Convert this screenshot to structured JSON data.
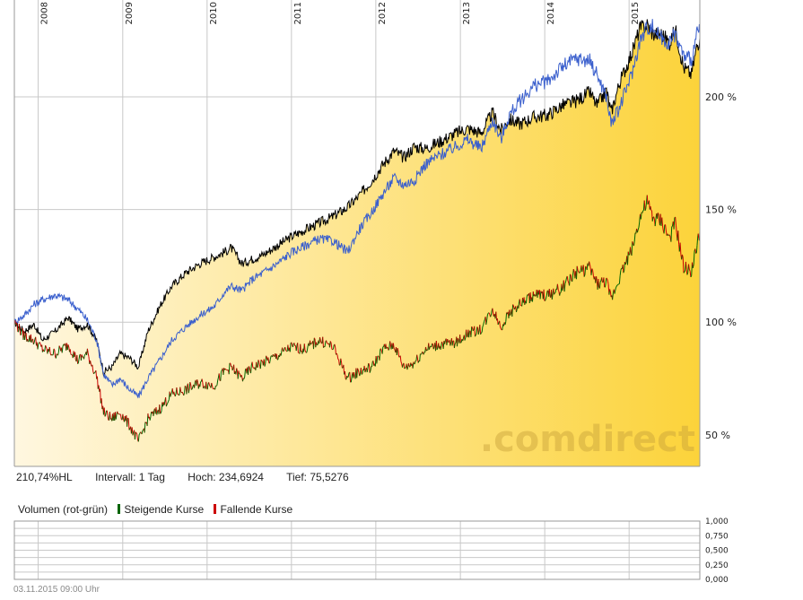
{
  "chart_data": {
    "type": "line",
    "start_date": "2007-09-20",
    "end_date": "2015-11-03",
    "year_labels": [
      "2008",
      "2009",
      "2010",
      "2011",
      "2012",
      "2013",
      "2014",
      "2015"
    ],
    "y_axis": {
      "ticks": [
        50,
        100,
        150,
        200
      ],
      "tick_labels": [
        "50 %",
        "100 %",
        "150 %",
        "200 %"
      ],
      "unit": "%",
      "ylim": [
        36,
        243
      ]
    },
    "grid": true,
    "series": [
      {
        "color": "#000000",
        "area_fill": true,
        "points": [
          [
            "2007-09-20",
            100
          ],
          [
            "2007-11-01",
            96
          ],
          [
            "2007-12-15",
            99
          ],
          [
            "2008-01-20",
            92
          ],
          [
            "2008-03-15",
            96
          ],
          [
            "2008-05-10",
            102
          ],
          [
            "2008-06-20",
            97
          ],
          [
            "2008-08-01",
            99
          ],
          [
            "2008-09-10",
            92
          ],
          [
            "2008-10-10",
            78
          ],
          [
            "2008-11-15",
            80
          ],
          [
            "2008-12-20",
            86
          ],
          [
            "2009-02-01",
            84
          ],
          [
            "2009-03-10",
            80
          ],
          [
            "2009-04-20",
            96
          ],
          [
            "2009-06-15",
            108
          ],
          [
            "2009-08-01",
            116
          ],
          [
            "2009-10-01",
            122
          ],
          [
            "2009-12-01",
            126
          ],
          [
            "2010-02-01",
            129
          ],
          [
            "2010-03-15",
            131
          ],
          [
            "2010-04-15",
            133
          ],
          [
            "2010-06-01",
            126
          ],
          [
            "2010-07-15",
            128
          ],
          [
            "2010-09-01",
            130
          ],
          [
            "2010-11-01",
            134
          ],
          [
            "2011-01-01",
            138
          ],
          [
            "2011-03-01",
            141
          ],
          [
            "2011-05-01",
            144
          ],
          [
            "2011-07-01",
            147
          ],
          [
            "2011-09-01",
            151
          ],
          [
            "2011-10-20",
            156
          ],
          [
            "2011-12-15",
            163
          ],
          [
            "2012-02-01",
            170
          ],
          [
            "2012-03-20",
            176
          ],
          [
            "2012-05-01",
            173
          ],
          [
            "2012-06-15",
            178
          ],
          [
            "2012-08-01",
            177
          ],
          [
            "2012-10-01",
            180
          ],
          [
            "2012-12-15",
            184
          ],
          [
            "2013-02-01",
            186
          ],
          [
            "2013-04-01",
            184
          ],
          [
            "2013-05-20",
            193
          ],
          [
            "2013-06-25",
            185
          ],
          [
            "2013-08-01",
            190
          ],
          [
            "2013-09-15",
            188
          ],
          [
            "2013-11-15",
            191
          ],
          [
            "2014-01-15",
            192
          ],
          [
            "2014-03-15",
            196
          ],
          [
            "2014-05-15",
            198
          ],
          [
            "2014-07-15",
            202
          ],
          [
            "2014-08-15",
            196
          ],
          [
            "2014-09-25",
            203
          ],
          [
            "2014-10-15",
            193
          ],
          [
            "2014-11-20",
            206
          ],
          [
            "2015-01-15",
            220
          ],
          [
            "2015-02-15",
            230
          ],
          [
            "2015-03-20",
            232
          ],
          [
            "2015-04-15",
            228
          ],
          [
            "2015-05-20",
            228
          ],
          [
            "2015-06-25",
            224
          ],
          [
            "2015-07-20",
            230
          ],
          [
            "2015-08-25",
            213
          ],
          [
            "2015-09-28",
            210
          ],
          [
            "2015-10-20",
            222
          ],
          [
            "2015-11-03",
            226
          ]
        ]
      },
      {
        "color": "#3a5fcd",
        "area_fill": false,
        "points": [
          [
            "2007-09-20",
            100
          ],
          [
            "2007-11-01",
            103
          ],
          [
            "2007-12-15",
            108
          ],
          [
            "2008-01-20",
            110
          ],
          [
            "2008-03-15",
            112
          ],
          [
            "2008-05-10",
            110
          ],
          [
            "2008-06-20",
            106
          ],
          [
            "2008-08-01",
            101
          ],
          [
            "2008-09-10",
            92
          ],
          [
            "2008-10-10",
            77
          ],
          [
            "2008-11-15",
            72
          ],
          [
            "2008-12-20",
            75
          ],
          [
            "2009-02-01",
            70
          ],
          [
            "2009-03-10",
            67
          ],
          [
            "2009-04-20",
            75
          ],
          [
            "2009-06-15",
            84
          ],
          [
            "2009-08-01",
            92
          ],
          [
            "2009-10-01",
            98
          ],
          [
            "2009-12-01",
            103
          ],
          [
            "2010-02-01",
            107
          ],
          [
            "2010-03-15",
            113
          ],
          [
            "2010-04-15",
            116
          ],
          [
            "2010-06-01",
            114
          ],
          [
            "2010-07-15",
            119
          ],
          [
            "2010-09-01",
            122
          ],
          [
            "2010-11-01",
            126
          ],
          [
            "2011-01-01",
            131
          ],
          [
            "2011-03-01",
            134
          ],
          [
            "2011-05-01",
            137
          ],
          [
            "2011-07-01",
            136
          ],
          [
            "2011-09-01",
            131
          ],
          [
            "2011-10-20",
            141
          ],
          [
            "2011-12-15",
            149
          ],
          [
            "2012-02-01",
            157
          ],
          [
            "2012-03-20",
            164
          ],
          [
            "2012-05-01",
            161
          ],
          [
            "2012-06-15",
            163
          ],
          [
            "2012-08-01",
            170
          ],
          [
            "2012-10-01",
            174
          ],
          [
            "2012-12-15",
            178
          ],
          [
            "2013-02-01",
            181
          ],
          [
            "2013-04-01",
            177
          ],
          [
            "2013-05-20",
            190
          ],
          [
            "2013-06-25",
            181
          ],
          [
            "2013-08-01",
            192
          ],
          [
            "2013-09-15",
            198
          ],
          [
            "2013-11-15",
            205
          ],
          [
            "2014-01-15",
            207
          ],
          [
            "2014-03-15",
            213
          ],
          [
            "2014-05-15",
            217
          ],
          [
            "2014-07-15",
            216
          ],
          [
            "2014-08-15",
            210
          ],
          [
            "2014-09-25",
            200
          ],
          [
            "2014-10-15",
            188
          ],
          [
            "2014-11-20",
            195
          ],
          [
            "2015-01-15",
            211
          ],
          [
            "2015-02-15",
            224
          ],
          [
            "2015-03-20",
            231
          ],
          [
            "2015-04-15",
            231
          ],
          [
            "2015-05-20",
            226
          ],
          [
            "2015-06-25",
            224
          ],
          [
            "2015-07-20",
            228
          ],
          [
            "2015-08-25",
            218
          ],
          [
            "2015-09-28",
            217
          ],
          [
            "2015-10-20",
            227
          ],
          [
            "2015-11-03",
            232
          ]
        ]
      },
      {
        "color": "#cc0000",
        "color_rising": "#006400",
        "area_fill": false,
        "points": [
          [
            "2007-09-20",
            100
          ],
          [
            "2007-11-01",
            94
          ],
          [
            "2007-12-15",
            92
          ],
          [
            "2008-01-20",
            88
          ],
          [
            "2008-03-15",
            86
          ],
          [
            "2008-05-10",
            90
          ],
          [
            "2008-06-20",
            83
          ],
          [
            "2008-08-01",
            86
          ],
          [
            "2008-09-10",
            76
          ],
          [
            "2008-10-10",
            60
          ],
          [
            "2008-11-15",
            57
          ],
          [
            "2008-12-20",
            60
          ],
          [
            "2009-02-01",
            54
          ],
          [
            "2009-03-10",
            47
          ],
          [
            "2009-04-20",
            57
          ],
          [
            "2009-06-15",
            62
          ],
          [
            "2009-08-01",
            68
          ],
          [
            "2009-10-01",
            70
          ],
          [
            "2009-12-01",
            73
          ],
          [
            "2010-02-01",
            72
          ],
          [
            "2010-03-15",
            78
          ],
          [
            "2010-04-15",
            80
          ],
          [
            "2010-06-01",
            75
          ],
          [
            "2010-07-15",
            80
          ],
          [
            "2010-09-01",
            82
          ],
          [
            "2010-11-01",
            85
          ],
          [
            "2011-01-01",
            89
          ],
          [
            "2011-03-01",
            88
          ],
          [
            "2011-05-01",
            92
          ],
          [
            "2011-07-01",
            89
          ],
          [
            "2011-09-01",
            75
          ],
          [
            "2011-10-20",
            78
          ],
          [
            "2011-12-15",
            80
          ],
          [
            "2012-02-01",
            88
          ],
          [
            "2012-03-20",
            90
          ],
          [
            "2012-05-01",
            80
          ],
          [
            "2012-06-15",
            82
          ],
          [
            "2012-08-01",
            88
          ],
          [
            "2012-10-01",
            90
          ],
          [
            "2012-12-15",
            91
          ],
          [
            "2013-02-01",
            95
          ],
          [
            "2013-04-01",
            97
          ],
          [
            "2013-05-20",
            106
          ],
          [
            "2013-06-25",
            98
          ],
          [
            "2013-08-01",
            104
          ],
          [
            "2013-09-15",
            108
          ],
          [
            "2013-11-15",
            112
          ],
          [
            "2014-01-15",
            112
          ],
          [
            "2014-03-15",
            115
          ],
          [
            "2014-05-15",
            122
          ],
          [
            "2014-07-15",
            124
          ],
          [
            "2014-08-15",
            117
          ],
          [
            "2014-09-25",
            118
          ],
          [
            "2014-10-15",
            110
          ],
          [
            "2014-11-20",
            120
          ],
          [
            "2015-01-15",
            133
          ],
          [
            "2015-02-15",
            146
          ],
          [
            "2015-03-20",
            153
          ],
          [
            "2015-04-15",
            146
          ],
          [
            "2015-05-20",
            145
          ],
          [
            "2015-06-25",
            137
          ],
          [
            "2015-07-20",
            144
          ],
          [
            "2015-08-25",
            124
          ],
          [
            "2015-09-28",
            123
          ],
          [
            "2015-10-20",
            133
          ],
          [
            "2015-11-03",
            140
          ]
        ]
      }
    ],
    "stats": {
      "change": "210,74%HL",
      "interval": "Intervall: 1 Tag",
      "high": "Hoch: 234,6924",
      "low": "Tief: 75,5276"
    },
    "volume": {
      "title": "Volumen (rot-grün)",
      "legend": [
        {
          "label": "Steigende Kurse",
          "color": "#006400"
        },
        {
          "label": "Fallende Kurse",
          "color": "#cc0000"
        }
      ],
      "tick_labels": [
        "1,000",
        "0,750",
        "0,500",
        "0,250",
        "0,000"
      ]
    }
  },
  "watermark": ".comdirect",
  "timestamp": "03.11.2015 09:00 Uhr",
  "colors": {
    "grid": "#c8c8c8",
    "fill_light": "#fff7e0",
    "fill_dark": "#fcd33a",
    "frame": "#9a9a9a"
  }
}
